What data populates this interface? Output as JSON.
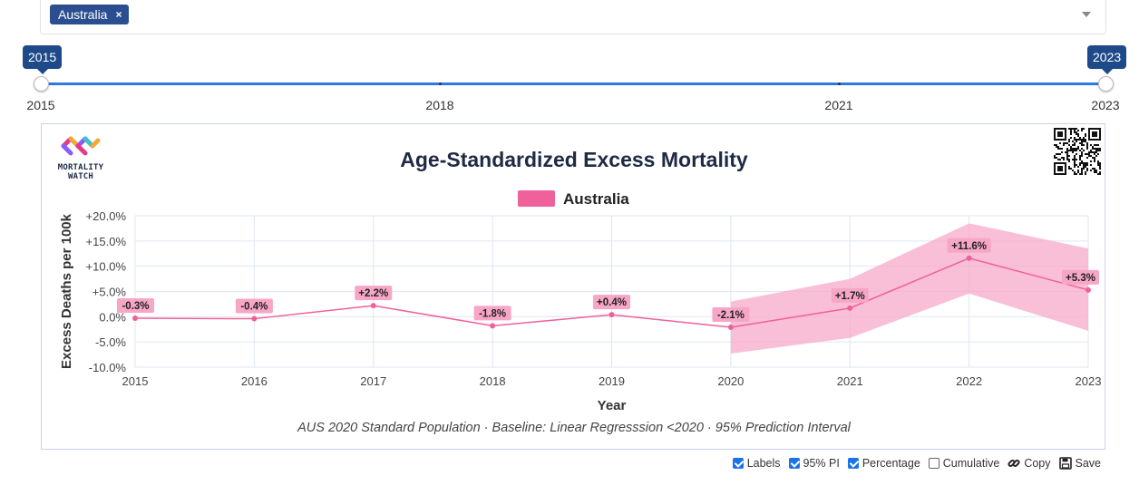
{
  "selector": {
    "chips": [
      {
        "label": "Australia",
        "remove": "×"
      }
    ]
  },
  "slider": {
    "start_value": "2015",
    "end_value": "2023",
    "min": 2015,
    "max": 2023,
    "tick_labels": [
      {
        "label": "2015",
        "year": 2015
      },
      {
        "label": "2018",
        "year": 2018
      },
      {
        "label": "2021",
        "year": 2021
      },
      {
        "label": "2023",
        "year": 2023
      }
    ]
  },
  "logo": {
    "line1": "MORTALITY",
    "line2": "WATCH"
  },
  "chart_data": {
    "type": "line",
    "title": "Age-Standardized Excess Mortality",
    "subtitle": "AUS 2020 Standard Population · Baseline: Linear Regresssion <2020 · 95% Prediction Interval",
    "xlabel": "Year",
    "ylabel": "Excess Deaths per 100k",
    "legend": {
      "position": "top-center"
    },
    "x": [
      2015,
      2016,
      2017,
      2018,
      2019,
      2020,
      2021,
      2022,
      2023
    ],
    "ylim": [
      -10,
      20
    ],
    "yticks": [
      -10,
      -5,
      0,
      5,
      10,
      15,
      20
    ],
    "ytick_labels": [
      "-10.0%",
      "-5.0%",
      "0.0%",
      "+5.0%",
      "+10.0%",
      "+15.0%",
      "+20.0%"
    ],
    "grid": true,
    "series": [
      {
        "name": "Australia",
        "color": "#f0609a",
        "values": [
          -0.3,
          -0.4,
          2.2,
          -1.8,
          0.4,
          -2.1,
          1.7,
          11.6,
          5.3
        ],
        "labels": [
          "-0.3%",
          "-0.4%",
          "+2.2%",
          "-1.8%",
          "+0.4%",
          "-2.1%",
          "+1.7%",
          "+11.6%",
          "+5.3%"
        ]
      }
    ],
    "prediction_interval": {
      "x": [
        2020,
        2021,
        2022,
        2023
      ],
      "lower": [
        -7.3,
        -4.2,
        4.6,
        -2.8
      ],
      "upper": [
        3.0,
        7.5,
        18.5,
        13.5
      ],
      "color": "#f7aac8"
    }
  },
  "controls": {
    "labels": {
      "label": "Labels",
      "checked": true
    },
    "pi": {
      "label": "95% PI",
      "checked": true
    },
    "percentage": {
      "label": "Percentage",
      "checked": true
    },
    "cumulative": {
      "label": "Cumulative",
      "checked": false
    },
    "copy": {
      "label": "Copy",
      "icon": "link-icon"
    },
    "save": {
      "label": "Save",
      "icon": "floppy-icon"
    }
  }
}
